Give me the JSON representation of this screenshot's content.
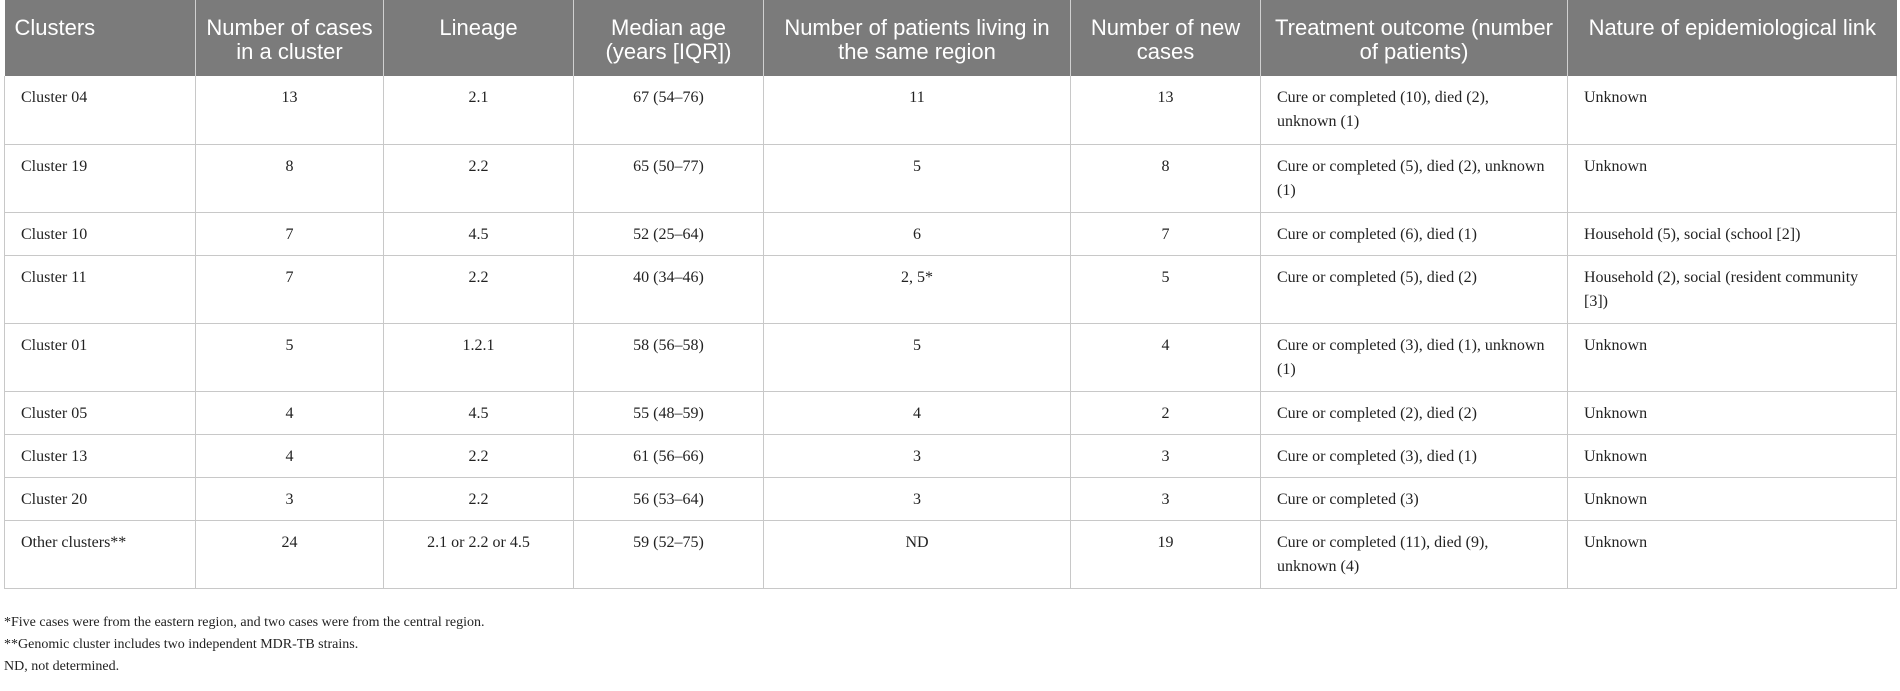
{
  "table": {
    "headers": [
      "Clusters",
      "Number of cases in a cluster",
      "Lineage",
      "Median age (years [IQR])",
      "Number of patients living in the same region",
      "Number of new cases",
      "Treatment outcome (number of patients)",
      "Nature of epidemiological link"
    ],
    "rows": [
      [
        "Cluster 04",
        "13",
        "2.1",
        "67 (54–76)",
        "11",
        "13",
        "Cure or completed (10), died (2), unknown (1)",
        "Unknown"
      ],
      [
        "Cluster 19",
        "8",
        "2.2",
        "65 (50–77)",
        "5",
        "8",
        "Cure or completed (5), died (2), unknown (1)",
        "Unknown"
      ],
      [
        "Cluster 10",
        "7",
        "4.5",
        "52 (25–64)",
        "6",
        "7",
        "Cure or completed (6), died (1)",
        "Household (5), social (school [2])"
      ],
      [
        "Cluster 11",
        "7",
        "2.2",
        "40 (34–46)",
        "2, 5*",
        "5",
        "Cure or completed (5), died (2)",
        "Household (2), social (resident community [3])"
      ],
      [
        "Cluster 01",
        "5",
        "1.2.1",
        "58 (56–58)",
        "5",
        "4",
        "Cure or completed (3), died (1), unknown (1)",
        "Unknown"
      ],
      [
        "Cluster 05",
        "4",
        "4.5",
        "55 (48–59)",
        "4",
        "2",
        "Cure or completed (2), died (2)",
        "Unknown"
      ],
      [
        "Cluster 13",
        "4",
        "2.2",
        "61 (56–66)",
        "3",
        "3",
        "Cure or completed (3), died (1)",
        "Unknown"
      ],
      [
        "Cluster 20",
        "3",
        "2.2",
        "56 (53–64)",
        "3",
        "3",
        "Cure or completed (3)",
        "Unknown"
      ],
      [
        "Other clusters**",
        "24",
        "2.1 or 2.2 or 4.5",
        "59 (52–75)",
        "ND",
        "19",
        "Cure or completed (11), died (9), unknown (4)",
        "Unknown"
      ]
    ]
  },
  "footnotes": [
    "*Five cases were from the eastern region, and two cases were from the central region.",
    "**Genomic cluster includes two independent MDR-TB strains.",
    "ND, not determined."
  ],
  "colors": {
    "header_bg": "#7b7b7b",
    "header_text": "#ffffff",
    "grid": "#c8c8c8"
  }
}
